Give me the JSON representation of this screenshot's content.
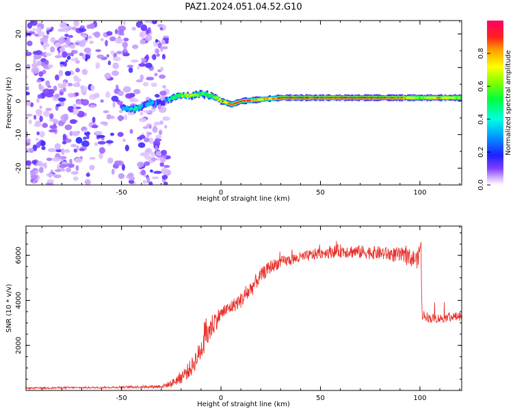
{
  "title": "PAZ1.2024.051.04.52.G10",
  "colors": {
    "snr_line": "#e8302a",
    "ridge_core": "#d0202a",
    "noise": "#9d6cf0"
  },
  "chart_data": [
    {
      "type": "heatmap",
      "xlabel": "Height of straight line (km)",
      "ylabel": "Frequency (Hz)",
      "xlim": [
        -98,
        121
      ],
      "ylim": [
        -25,
        24
      ],
      "xticks": [
        -50,
        0,
        50,
        100
      ],
      "xtick_labels": [
        "-50",
        "0",
        "50",
        "100"
      ],
      "yticks": [
        -20,
        -10,
        0,
        10,
        20
      ],
      "ytick_labels": [
        "-20",
        "-10",
        "0",
        "10",
        "20"
      ],
      "colorbar": {
        "label": "Normalized spectral amplitude",
        "range": [
          0,
          1
        ],
        "ticks": [
          0.0,
          0.2,
          0.4,
          0.6,
          0.8
        ],
        "tick_labels": [
          "0.0",
          "0.2",
          "0.4",
          "0.6",
          "0.8"
        ],
        "colormap": "gist_rainbow"
      },
      "ridge": [
        {
          "x": -50,
          "freq": -2.0,
          "amp": 0.35
        },
        {
          "x": -44,
          "freq": -2.5,
          "amp": 0.45
        },
        {
          "x": -40,
          "freq": -1.5,
          "amp": 0.3
        },
        {
          "x": -36,
          "freq": -0.5,
          "amp": 0.35
        },
        {
          "x": -30,
          "freq": -0.5,
          "amp": 0.2
        },
        {
          "x": -25,
          "freq": 1.0,
          "amp": 0.5
        },
        {
          "x": -20,
          "freq": 1.8,
          "amp": 0.65
        },
        {
          "x": -15,
          "freq": 1.5,
          "amp": 0.7
        },
        {
          "x": -10,
          "freq": 2.2,
          "amp": 0.6
        },
        {
          "x": -5,
          "freq": 1.5,
          "amp": 0.55
        },
        {
          "x": 0,
          "freq": 0.0,
          "amp": 0.85
        },
        {
          "x": 5,
          "freq": -1.0,
          "amp": 0.9
        },
        {
          "x": 10,
          "freq": 0.0,
          "amp": 0.95
        },
        {
          "x": 20,
          "freq": 0.5,
          "amp": 0.8
        },
        {
          "x": 30,
          "freq": 1.0,
          "amp": 0.95
        },
        {
          "x": 50,
          "freq": 1.0,
          "amp": 0.95
        },
        {
          "x": 70,
          "freq": 1.0,
          "amp": 0.97
        },
        {
          "x": 90,
          "freq": 1.0,
          "amp": 0.9
        },
        {
          "x": 100,
          "freq": 1.0,
          "amp": 0.6
        },
        {
          "x": 110,
          "freq": 1.0,
          "amp": 0.85
        },
        {
          "x": 121,
          "freq": 1.0,
          "amp": 0.6
        }
      ],
      "noise_region_x": [
        -98,
        -27
      ]
    },
    {
      "type": "line",
      "xlabel": "Height of straight line (km)",
      "ylabel": "SNR (10 * v/v)",
      "xlim": [
        -98,
        121
      ],
      "ylim": [
        0,
        7300
      ],
      "xticks": [
        -50,
        0,
        50,
        100
      ],
      "xtick_labels": [
        "-50",
        "0",
        "50",
        "100"
      ],
      "yticks": [
        2000,
        4000,
        6000
      ],
      "ytick_labels": [
        "2000",
        "4000",
        "6000"
      ],
      "series": [
        {
          "x": [
            -98,
            -80,
            -60,
            -40,
            -30,
            -25,
            -20,
            -15,
            -10,
            -8,
            -5,
            -3,
            0,
            5,
            10,
            15,
            20,
            25,
            30,
            40,
            50,
            60,
            70,
            80,
            90,
            95,
            99,
            100.5,
            101,
            105,
            110,
            115,
            121
          ],
          "y": [
            100,
            120,
            130,
            160,
            180,
            300,
            600,
            1000,
            1800,
            2400,
            2800,
            3100,
            3400,
            3700,
            4000,
            4500,
            5100,
            5500,
            5700,
            5900,
            6100,
            6200,
            6150,
            6100,
            6000,
            5900,
            5800,
            6600,
            3400,
            3200,
            3200,
            3250,
            3300
          ],
          "noise_amplitude": [
            40,
            40,
            40,
            60,
            80,
            150,
            300,
            400,
            500,
            800,
            600,
            500,
            300,
            300,
            350,
            400,
            300,
            300,
            250,
            250,
            250,
            300,
            300,
            300,
            350,
            400,
            400,
            400,
            250,
            200,
            200,
            200,
            200
          ]
        }
      ]
    }
  ]
}
